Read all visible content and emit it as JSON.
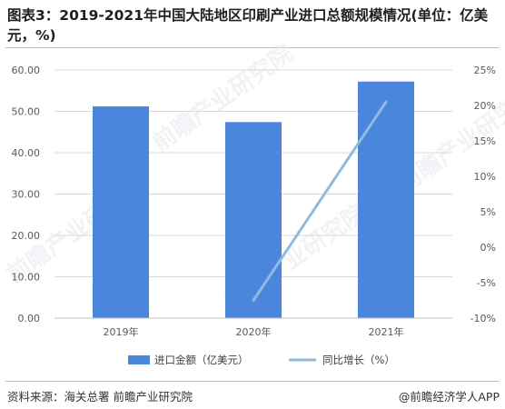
{
  "title": "图表3：2019-2021年中国大陆地区印刷产业进口总额规模情况(单位：亿美元，%)",
  "source": "资料来源：海关总署 前瞻产业研究院",
  "credit": "@前瞻经济学人APP",
  "watermark": "前瞻产业研究院",
  "colors": {
    "bar": "#4a86dc",
    "line": "#92badf",
    "grid": "#d9d9d9",
    "tick": "#595959"
  },
  "chart_data": {
    "type": "bar",
    "categories": [
      "2019年",
      "2020年",
      "2021年"
    ],
    "series": [
      {
        "name": "进口金额（亿美元）",
        "type": "bar",
        "axis": "left",
        "values": [
          51.2,
          47.4,
          57.2
        ]
      },
      {
        "name": "同比增长（%）",
        "type": "line",
        "axis": "right",
        "values": [
          null,
          -7.5,
          20.5
        ]
      }
    ],
    "y_left": {
      "min": 0,
      "max": 60,
      "step": 10,
      "tick_labels": [
        "0.00",
        "10.00",
        "20.00",
        "30.00",
        "40.00",
        "50.00",
        "60.00"
      ]
    },
    "y_right": {
      "min": -10,
      "max": 25,
      "step": 5,
      "tick_labels": [
        "-10%",
        "-5%",
        "0%",
        "5%",
        "10%",
        "15%",
        "20%",
        "25%"
      ]
    },
    "grid": true,
    "legend": "bottom"
  }
}
